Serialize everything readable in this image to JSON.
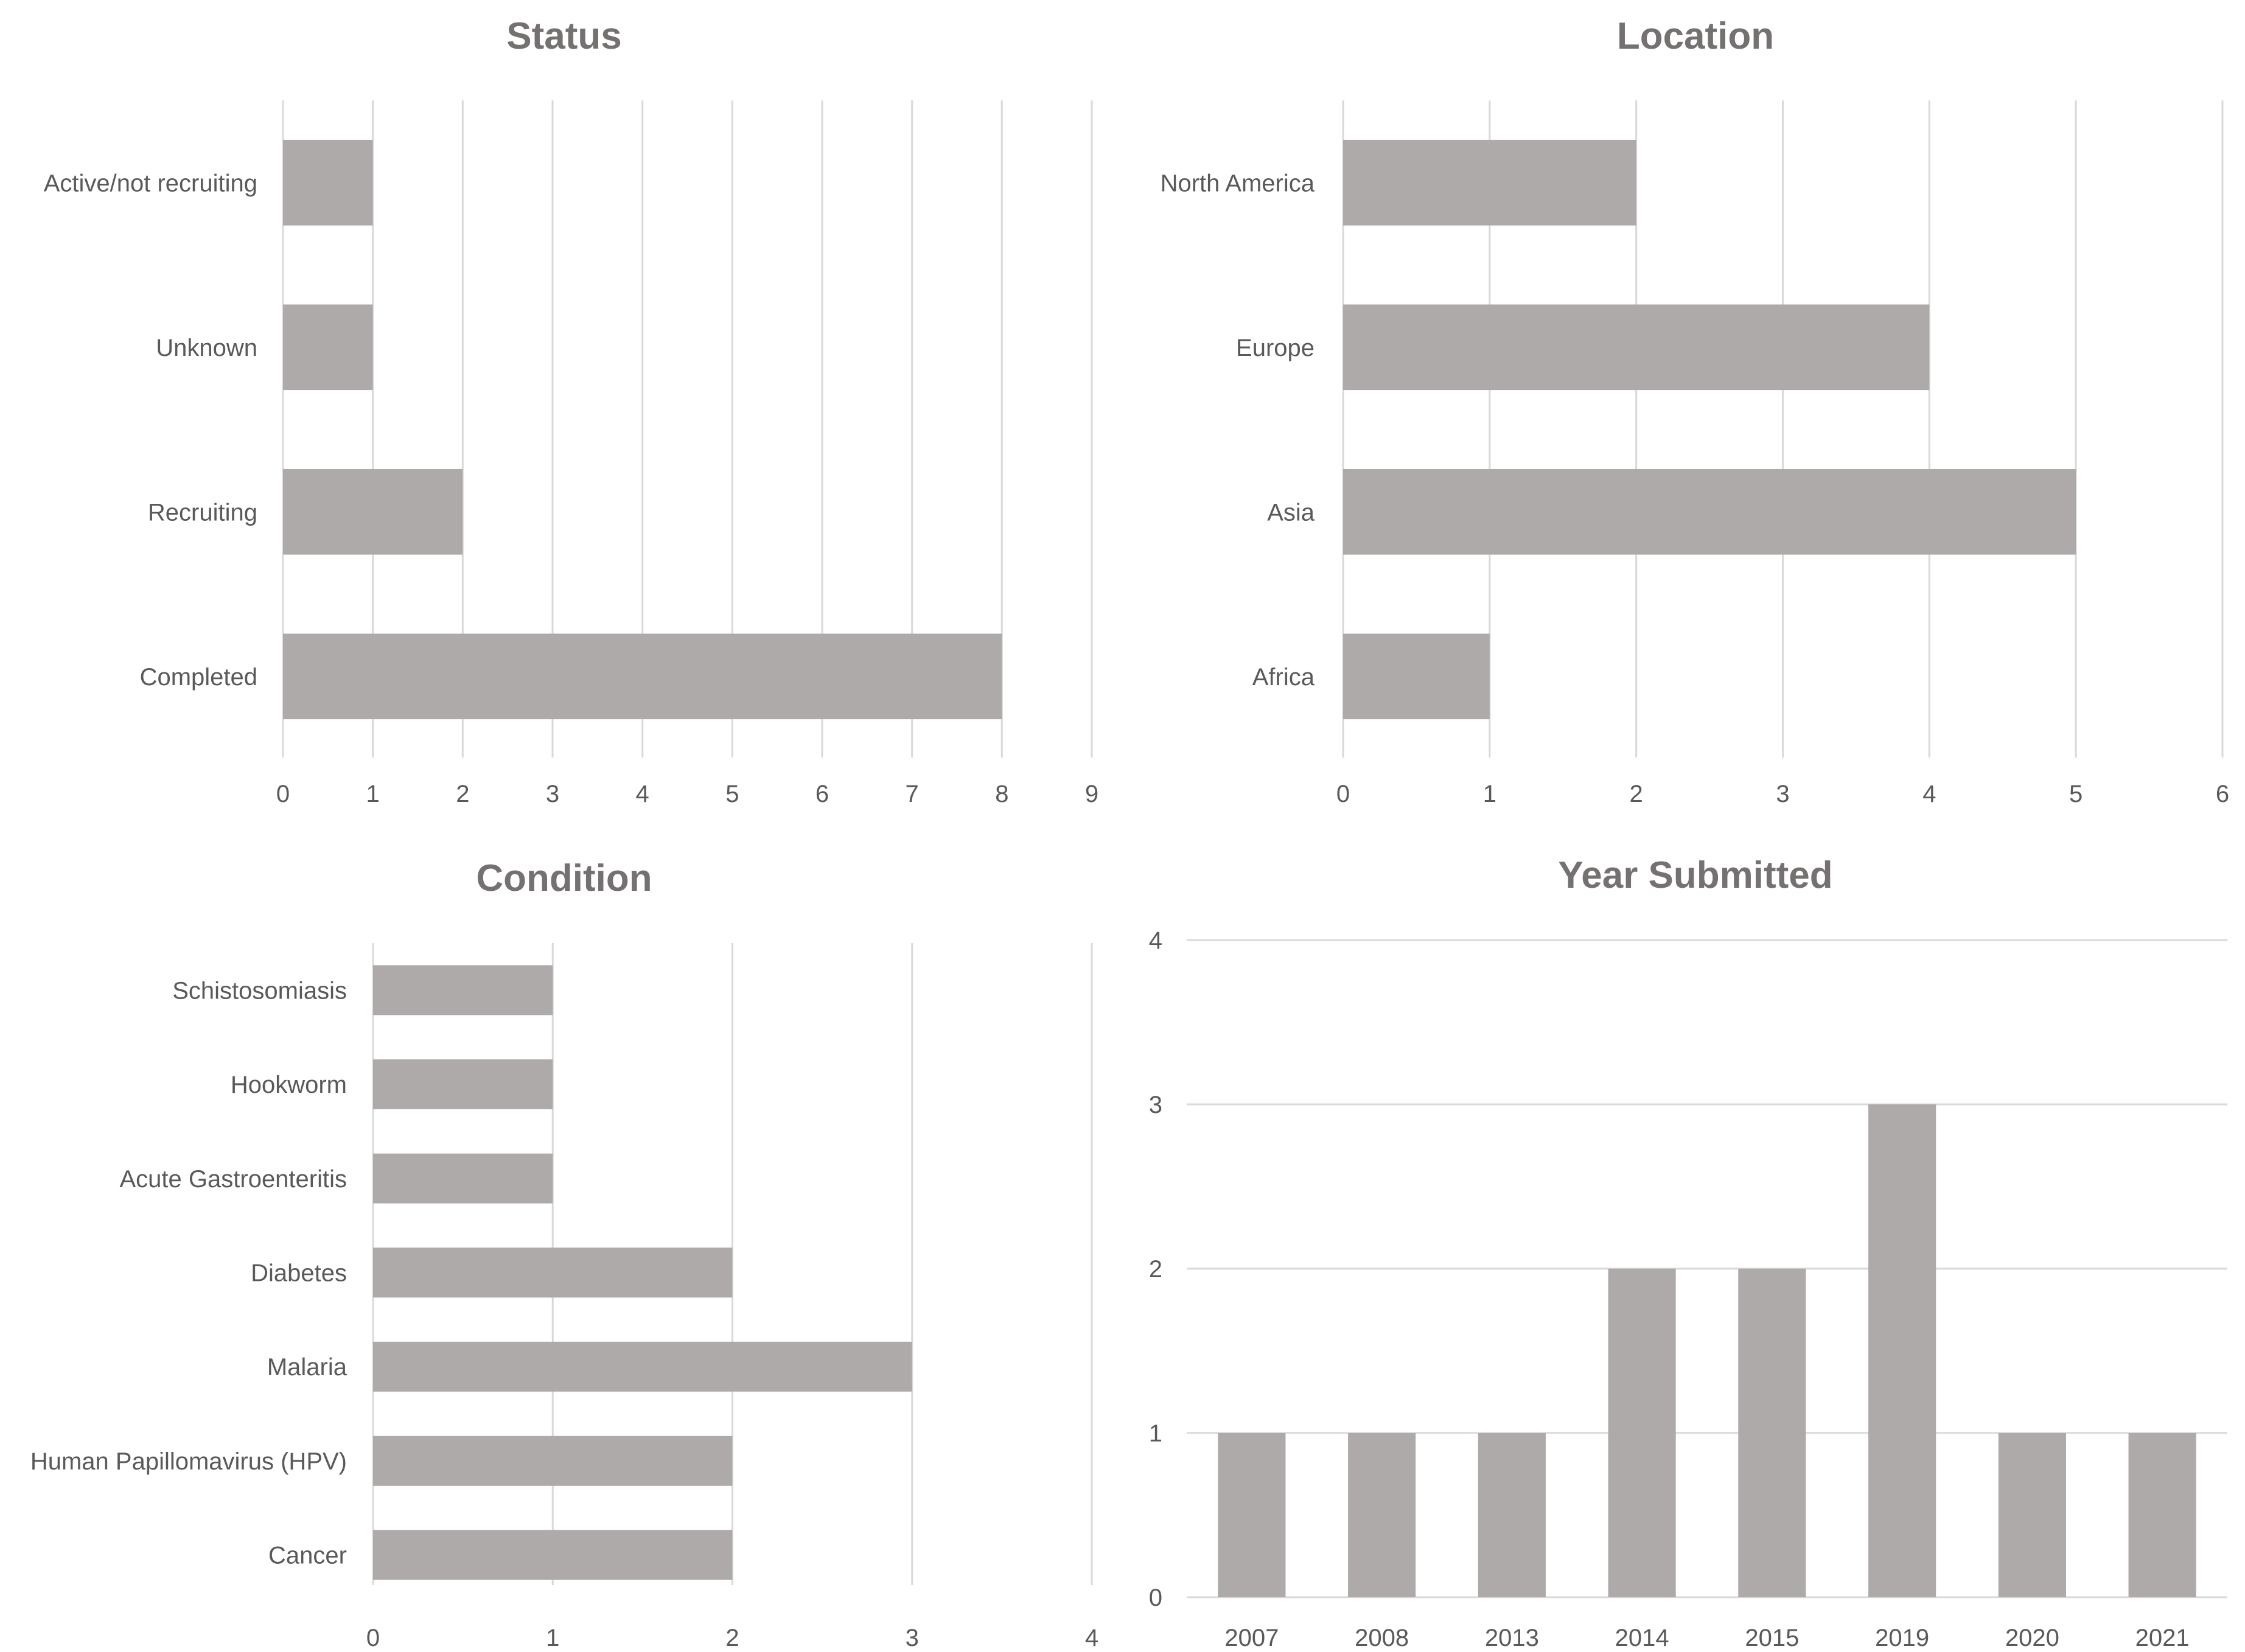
{
  "colors": {
    "bar": "#aeaaaa",
    "grid": "#d9d9d9",
    "title": "#767171",
    "label": "#595959"
  },
  "chart_data": [
    {
      "id": "status",
      "type": "bar",
      "orientation": "horizontal",
      "title": "Status",
      "categories": [
        "Active/not recruiting",
        "Unknown",
        "Recruiting",
        "Completed"
      ],
      "values": [
        1,
        1,
        2,
        8
      ],
      "xlim": [
        0,
        9
      ],
      "ticks": [
        0,
        1,
        2,
        3,
        4,
        5,
        6,
        7,
        8,
        9
      ],
      "grid": true
    },
    {
      "id": "location",
      "type": "bar",
      "orientation": "horizontal",
      "title": "Location",
      "categories": [
        "North America",
        "Europe",
        "Asia",
        "Africa"
      ],
      "values": [
        2,
        4,
        5,
        1
      ],
      "xlim": [
        0,
        6
      ],
      "ticks": [
        0,
        1,
        2,
        3,
        4,
        5,
        6
      ],
      "grid": true
    },
    {
      "id": "condition",
      "type": "bar",
      "orientation": "horizontal",
      "title": "Condition",
      "categories": [
        "Schistosomiasis",
        "Hookworm",
        "Acute Gastroenteritis",
        "Diabetes",
        "Malaria",
        "Human Papillomavirus (HPV)",
        "Cancer"
      ],
      "values": [
        1,
        1,
        1,
        2,
        3,
        2,
        2
      ],
      "xlim": [
        0,
        4
      ],
      "ticks": [
        0,
        1,
        2,
        3,
        4
      ],
      "grid": true
    },
    {
      "id": "year",
      "type": "bar",
      "orientation": "vertical",
      "title": "Year Submitted",
      "categories": [
        "2007",
        "2008",
        "2013",
        "2014",
        "2015",
        "2019",
        "2020",
        "2021"
      ],
      "values": [
        1,
        1,
        1,
        2,
        2,
        3,
        1,
        1
      ],
      "ylim": [
        0,
        4
      ],
      "ticks": [
        0,
        1,
        2,
        3,
        4
      ],
      "grid": true
    }
  ]
}
